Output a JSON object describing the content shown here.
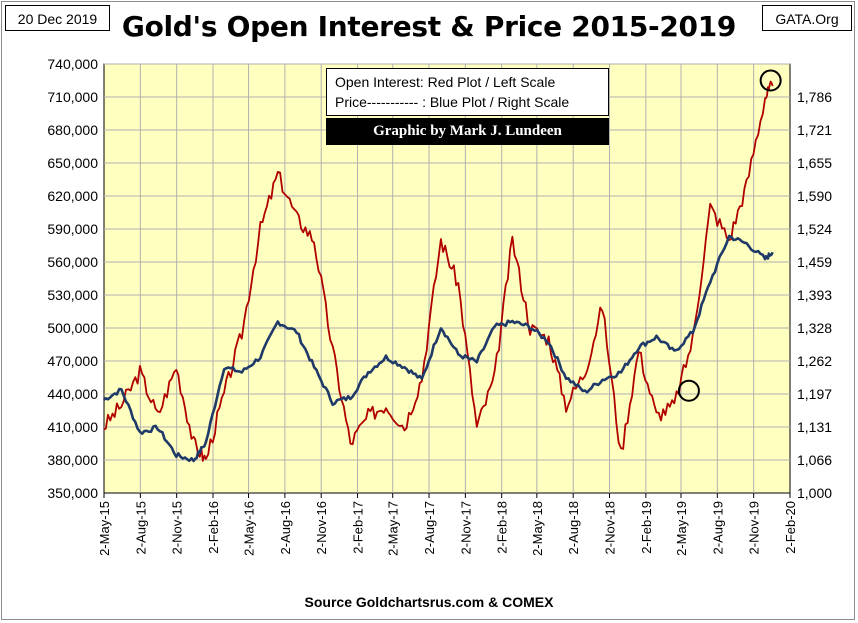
{
  "header": {
    "date": "20 Dec 2019",
    "title": "Gold's Open Interest & Price 2015-2019",
    "brand": "GATA.Org"
  },
  "legend": {
    "line1": "Open Interest:  Red Plot / Left Scale",
    "line2": "Price----------- : Blue Plot / Right Scale",
    "credit": "Graphic by Mark J. Lundeen"
  },
  "footer": {
    "source": "Source Goldchartsrus.com & COMEX"
  },
  "colors": {
    "plot_bg": "#ffffc0",
    "open_interest": "#b00000",
    "price": "#1f3a68",
    "grid": "#b0b0b0"
  },
  "chart_data": {
    "type": "line",
    "title": "Gold's Open Interest & Price 2015-2019",
    "x_ticks": [
      "2-May-15",
      "2-Aug-15",
      "2-Nov-15",
      "2-Feb-16",
      "2-May-16",
      "2-Aug-16",
      "2-Nov-16",
      "2-Feb-17",
      "2-May-17",
      "2-Aug-17",
      "2-Nov-17",
      "2-Feb-18",
      "2-May-18",
      "2-Aug-18",
      "2-Nov-18",
      "2-Feb-19",
      "2-May-19",
      "2-Aug-19",
      "2-Nov-19",
      "2-Feb-20"
    ],
    "y_left": {
      "ylim": [
        350000,
        740000
      ],
      "ticks": [
        "350,000",
        "380,000",
        "410,000",
        "440,000",
        "470,000",
        "500,000",
        "530,000",
        "560,000",
        "590,000",
        "620,000",
        "650,000",
        "680,000",
        "710,000",
        "740,000"
      ]
    },
    "y_right": {
      "ylim": [
        1000,
        1852
      ],
      "ticks": [
        "1,000",
        "1,066",
        "1,131",
        "1,197",
        "1,262",
        "1,328",
        "1,393",
        "1,459",
        "1,524",
        "1,590",
        "1,655",
        "1,721",
        "1,786"
      ]
    },
    "grid": true,
    "x": [
      "2015-05-01",
      "2015-06-15",
      "2015-08-01",
      "2015-09-15",
      "2015-11-01",
      "2015-12-15",
      "2016-01-15",
      "2016-03-01",
      "2016-04-15",
      "2016-06-01",
      "2016-07-15",
      "2016-09-01",
      "2016-10-15",
      "2016-12-01",
      "2017-01-15",
      "2017-03-01",
      "2017-04-15",
      "2017-06-01",
      "2017-07-15",
      "2017-09-01",
      "2017-10-15",
      "2017-12-01",
      "2018-01-15",
      "2018-03-01",
      "2018-04-15",
      "2018-06-01",
      "2018-07-15",
      "2018-09-01",
      "2018-10-15",
      "2018-12-01",
      "2019-01-15",
      "2019-03-01",
      "2019-04-15",
      "2019-06-01",
      "2019-07-15",
      "2019-09-01",
      "2019-10-15",
      "2019-12-01",
      "2019-12-20"
    ],
    "series": [
      {
        "name": "Open Interest",
        "axis": "left",
        "values": [
          410000,
          430000,
          460000,
          420000,
          465000,
          395000,
          380000,
          440000,
          495000,
          590000,
          640000,
          600000,
          580000,
          480000,
          395000,
          420000,
          430000,
          410000,
          455000,
          580000,
          540000,
          410000,
          455000,
          580000,
          500000,
          490000,
          430000,
          460000,
          520000,
          385000,
          480000,
          420000,
          430000,
          490000,
          610000,
          580000,
          630000,
          710000,
          720000
        ]
      },
      {
        "name": "Price",
        "axis": "right",
        "values": [
          1185,
          1205,
          1120,
          1130,
          1075,
          1065,
          1100,
          1250,
          1240,
          1270,
          1340,
          1320,
          1250,
          1180,
          1190,
          1240,
          1270,
          1250,
          1225,
          1330,
          1275,
          1260,
          1330,
          1340,
          1330,
          1300,
          1230,
          1200,
          1225,
          1240,
          1290,
          1310,
          1280,
          1320,
          1420,
          1510,
          1495,
          1465,
          1478
        ]
      }
    ],
    "annotations": [
      {
        "label": "",
        "x": "2019-05-22",
        "axis": "left",
        "y": 443000
      },
      {
        "label": "",
        "x": "2019-12-15",
        "axis": "left",
        "y": 725000
      }
    ]
  }
}
